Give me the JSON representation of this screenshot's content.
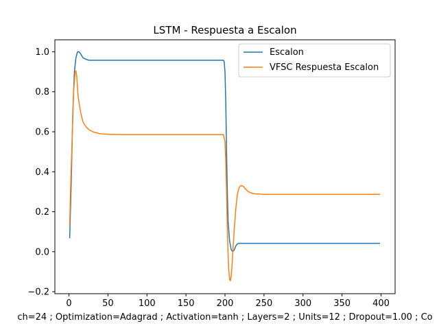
{
  "chart_data": {
    "type": "line",
    "title": "LSTM - Respuesta a Escalon",
    "xlabel": "ch=24 ; Optimization=Adagrad ; Activation=tanh ; Layers=2 ; Units=12 ; Dropout=1.00 ; Co",
    "ylabel": "",
    "xlim": [
      -18,
      418
    ],
    "ylim": [
      -0.21,
      1.06
    ],
    "xticks": [
      0,
      50,
      100,
      150,
      200,
      250,
      300,
      350,
      400
    ],
    "yticks": [
      -0.2,
      0.0,
      0.2,
      0.4,
      0.6,
      0.8,
      1.0
    ],
    "ytick_labels": [
      "−0.2",
      "0.0",
      "0.2",
      "0.4",
      "0.6",
      "0.8",
      "1.0"
    ],
    "legend_position": "top-right",
    "grid": false,
    "series": [
      {
        "name": "Escalon",
        "color": "#1f77b4",
        "x": [
          1,
          3,
          5,
          7,
          9,
          11,
          13,
          15,
          18,
          22,
          26,
          30,
          40,
          60,
          100,
          150,
          195,
          198,
          199,
          200,
          201,
          202,
          203,
          204,
          206,
          208,
          210,
          212,
          214,
          216,
          218,
          220,
          224,
          230,
          250,
          300,
          350,
          398
        ],
        "y": [
          0.07,
          0.35,
          0.7,
          0.9,
          0.97,
          1.0,
          1.0,
          0.99,
          0.97,
          0.962,
          0.958,
          0.958,
          0.958,
          0.958,
          0.958,
          0.958,
          0.958,
          0.958,
          0.95,
          0.9,
          0.75,
          0.5,
          0.3,
          0.15,
          0.05,
          0.01,
          0.0,
          0.01,
          0.03,
          0.04,
          0.042,
          0.042,
          0.042,
          0.042,
          0.042,
          0.042,
          0.042,
          0.042
        ]
      },
      {
        "name": "VFSC Respuesta Escalon",
        "color": "#ff7f0e",
        "x": [
          1,
          2,
          4,
          6,
          8,
          9,
          10,
          11,
          12,
          14,
          16,
          18,
          20,
          23,
          27,
          32,
          40,
          50,
          70,
          100,
          150,
          198,
          200,
          201,
          202,
          203,
          204,
          205,
          206,
          207,
          208,
          209,
          210,
          212,
          214,
          216,
          218,
          220,
          222,
          224,
          226,
          230,
          235,
          240,
          250,
          270,
          300,
          350,
          398
        ],
        "y": [
          0.13,
          0.3,
          0.55,
          0.8,
          0.9,
          0.905,
          0.88,
          0.82,
          0.77,
          0.72,
          0.68,
          0.65,
          0.635,
          0.62,
          0.607,
          0.598,
          0.59,
          0.587,
          0.586,
          0.586,
          0.586,
          0.586,
          0.55,
          0.45,
          0.3,
          0.12,
          -0.02,
          -0.1,
          -0.14,
          -0.145,
          -0.12,
          -0.07,
          0.0,
          0.12,
          0.22,
          0.29,
          0.32,
          0.33,
          0.33,
          0.325,
          0.315,
          0.3,
          0.292,
          0.289,
          0.287,
          0.287,
          0.287,
          0.287,
          0.287
        ]
      }
    ]
  }
}
